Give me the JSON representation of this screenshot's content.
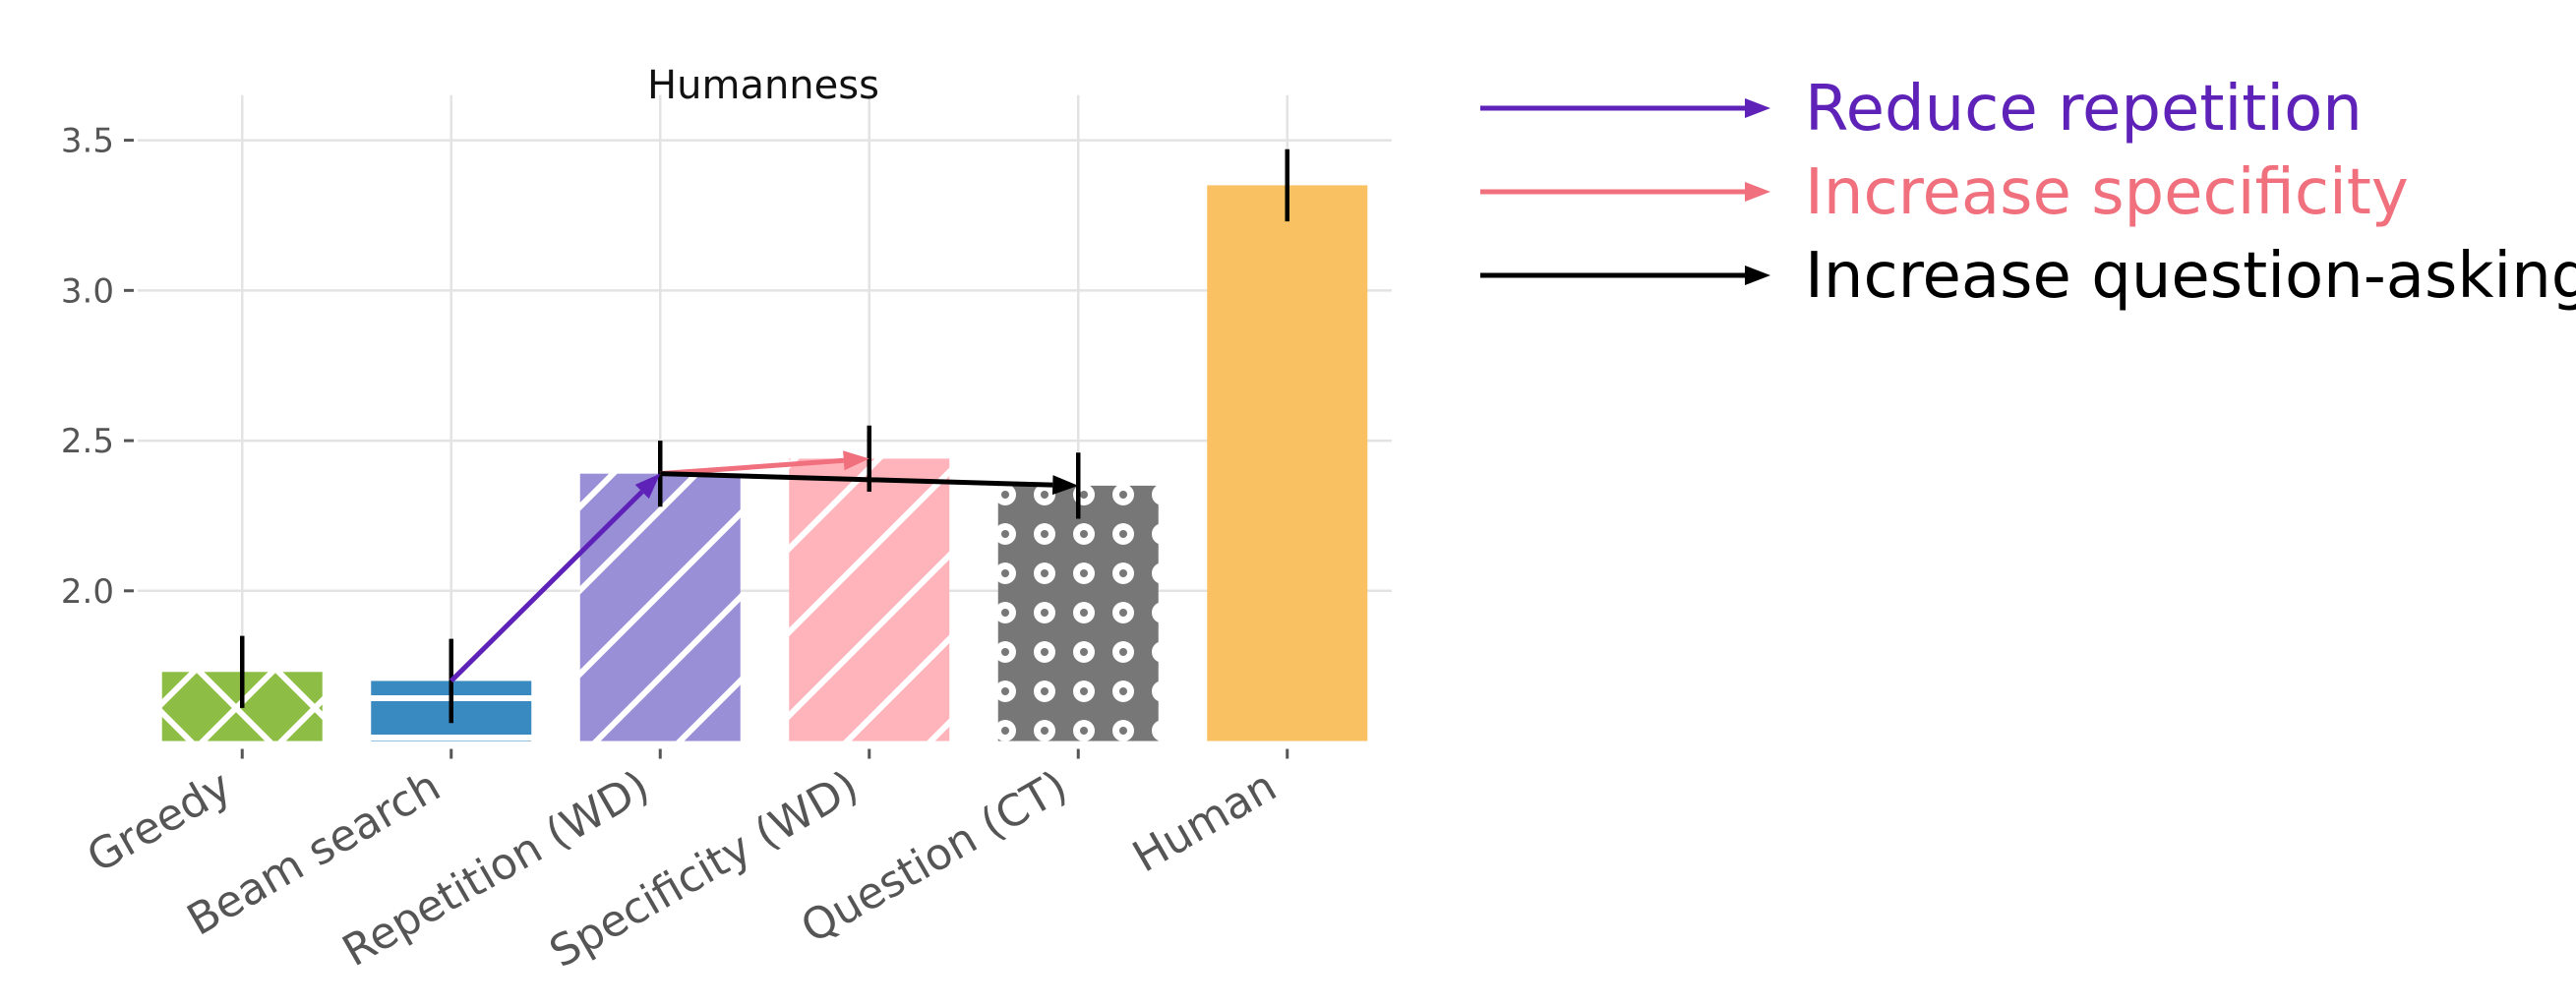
{
  "chart_data": {
    "type": "bar",
    "title": "Humanness",
    "xlabel": "",
    "ylabel": "",
    "ylim": [
      1.5,
      3.65
    ],
    "yticks": [
      2.0,
      2.5,
      3.0,
      3.5
    ],
    "ytick_labels": [
      "2.0",
      "2.5",
      "3.0",
      "3.5"
    ],
    "grid": true,
    "categories": [
      "Greedy",
      "Beam search",
      "Repetition (WD)",
      "Specificity (WD)",
      "Question (CT)",
      "Human"
    ],
    "values": [
      1.73,
      1.7,
      2.39,
      2.44,
      2.35,
      3.35
    ],
    "errors": [
      0.12,
      0.14,
      0.11,
      0.11,
      0.11,
      0.12
    ],
    "colors": [
      "#8ebd45",
      "#3a8ac2",
      "#998fd6",
      "#ffb3bb",
      "#777777",
      "#f9c161"
    ],
    "patterns": [
      "cross",
      "horizontal",
      "diagonal",
      "diagonal",
      "dots",
      "none"
    ],
    "arrows": [
      {
        "from": 1,
        "to": 2,
        "color": "#5e22b8",
        "label": "Reduce repetition"
      },
      {
        "from": 2,
        "to": 3,
        "color": "#f0707e",
        "label": "Increase specificity"
      },
      {
        "from": 2,
        "to": 4,
        "color": "#000000",
        "label": "Increase question-asking"
      }
    ],
    "legend_placement": "right"
  }
}
